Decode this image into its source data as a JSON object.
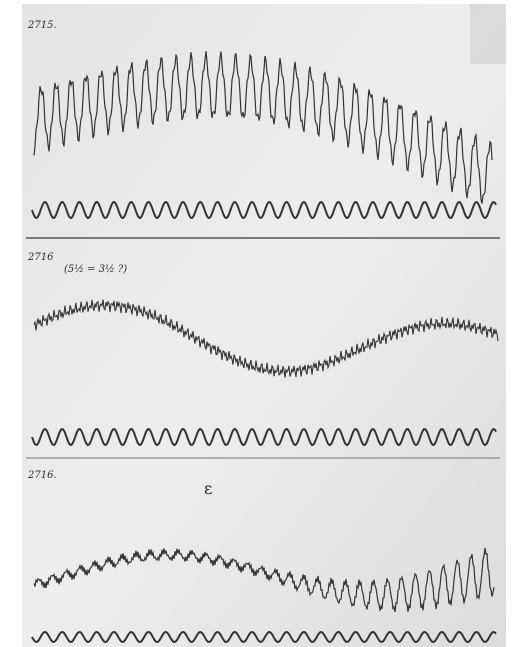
{
  "panels": [
    {
      "label": "2715."
    },
    {
      "label": "2716",
      "note": "(5½ = 3½ ?)"
    },
    {
      "label": "2716.",
      "mark": "ε"
    }
  ]
}
